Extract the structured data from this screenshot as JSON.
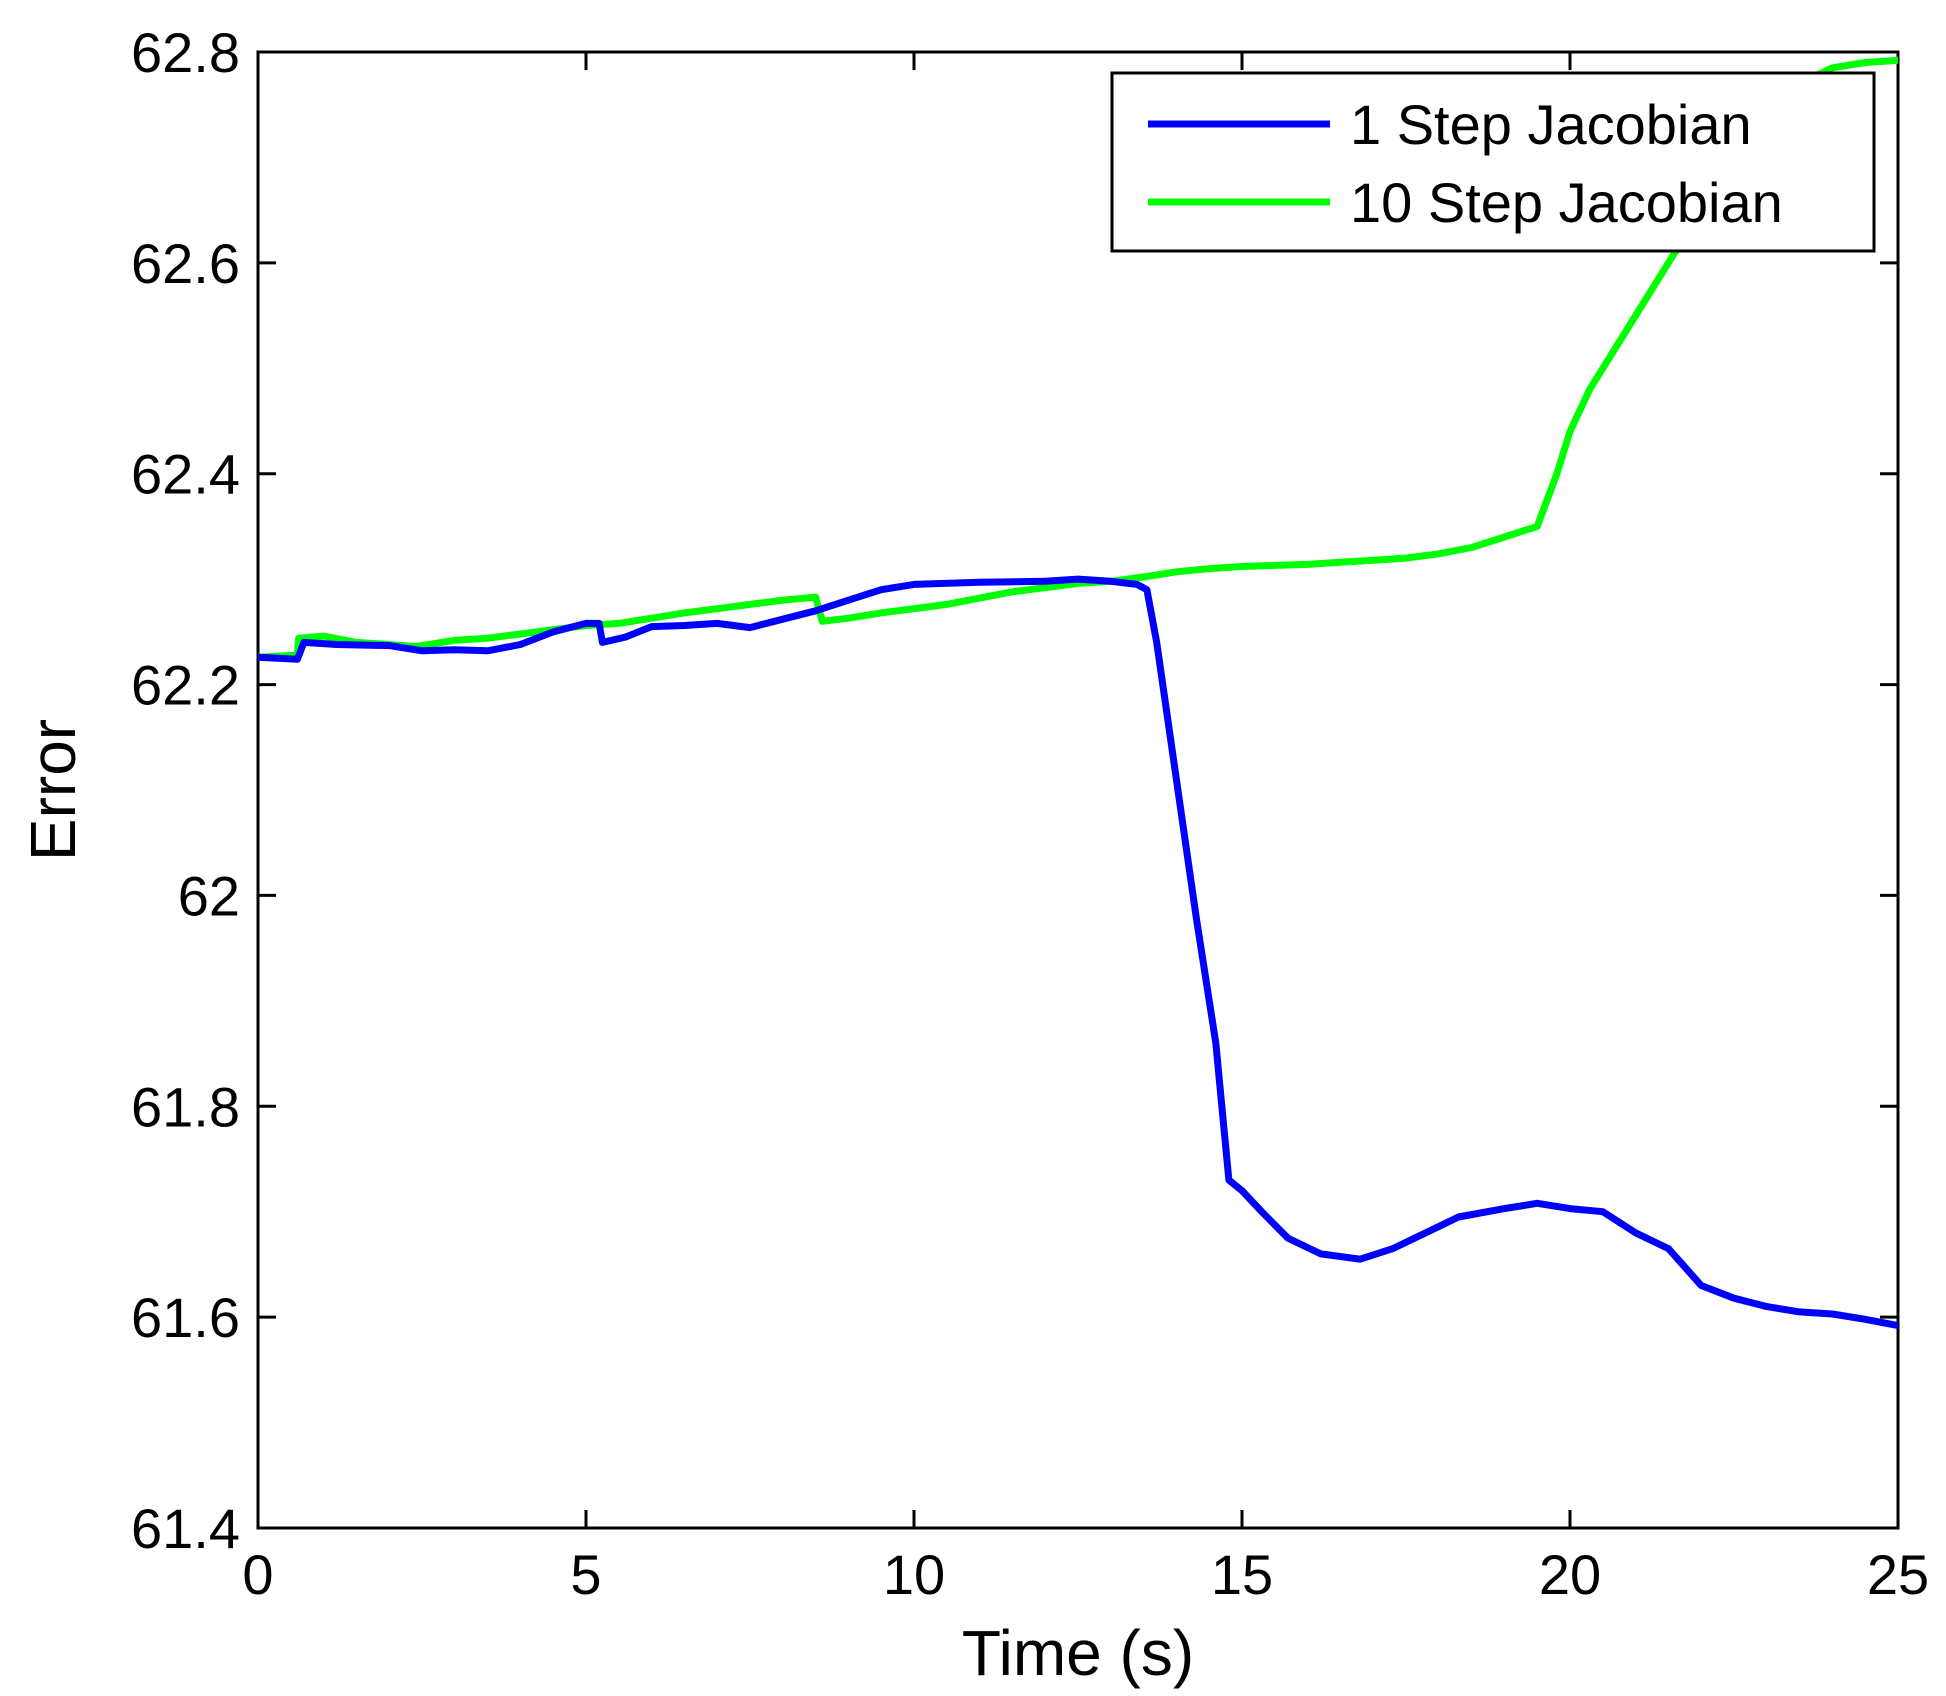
{
  "chart_data": {
    "type": "line",
    "title": "",
    "xlabel": "Time (s)",
    "ylabel": "Error",
    "xlim": [
      0,
      25
    ],
    "ylim": [
      61.4,
      62.8
    ],
    "xticks": [
      0,
      5,
      10,
      15,
      20,
      25
    ],
    "yticks": [
      61.4,
      61.6,
      61.8,
      62,
      62.2,
      62.4,
      62.6,
      62.8
    ],
    "xtick_labels": [
      "0",
      "5",
      "10",
      "15",
      "20",
      "25"
    ],
    "ytick_labels": [
      "61.4",
      "61.6",
      "61.8",
      "62",
      "62.2",
      "62.4",
      "62.6",
      "62.8"
    ],
    "grid": false,
    "legend_position": "top-right",
    "series": [
      {
        "name": "1 Step Jacobian",
        "color": "#0000ff",
        "x": [
          0,
          0.6,
          0.7,
          1.2,
          2.0,
          2.5,
          3.0,
          3.5,
          4.0,
          4.5,
          5.0,
          5.2,
          5.25,
          5.6,
          6.0,
          6.5,
          7.0,
          7.5,
          8.0,
          8.5,
          9.0,
          9.5,
          10.0,
          11.0,
          12.0,
          12.5,
          13.0,
          13.4,
          13.55,
          13.7,
          14.0,
          14.3,
          14.6,
          14.8,
          15.0,
          15.3,
          15.7,
          16.2,
          16.8,
          17.3,
          17.8,
          18.3,
          19.0,
          19.5,
          20.0,
          20.5,
          21.0,
          21.5,
          22.0,
          22.5,
          23.0,
          23.5,
          24.0,
          24.5,
          25.0
        ],
        "y": [
          62.226,
          62.224,
          62.24,
          62.238,
          62.237,
          62.232,
          62.233,
          62.232,
          62.238,
          62.25,
          62.258,
          62.258,
          62.24,
          62.245,
          62.255,
          62.256,
          62.258,
          62.254,
          62.262,
          62.27,
          62.28,
          62.29,
          62.295,
          62.297,
          62.298,
          62.3,
          62.298,
          62.295,
          62.29,
          62.24,
          62.11,
          61.98,
          61.86,
          61.73,
          61.72,
          61.7,
          61.675,
          61.66,
          61.655,
          61.665,
          61.68,
          61.695,
          61.703,
          61.708,
          61.703,
          61.7,
          61.68,
          61.665,
          61.63,
          61.618,
          61.61,
          61.605,
          61.603,
          61.598,
          61.592
        ]
      },
      {
        "name": "10 Step Jacobian",
        "color": "#00ff00",
        "x": [
          0,
          0.6,
          0.62,
          1.0,
          1.5,
          2.0,
          2.4,
          3.0,
          3.5,
          4.0,
          4.5,
          5.0,
          5.5,
          6.0,
          6.5,
          7.0,
          7.5,
          8.0,
          8.5,
          8.6,
          9.0,
          9.5,
          10.0,
          10.5,
          11.0,
          11.5,
          12.0,
          12.5,
          13.0,
          13.5,
          14.0,
          14.5,
          15.0,
          15.5,
          16.0,
          16.5,
          17.0,
          17.5,
          18.0,
          18.5,
          19.0,
          19.5,
          19.8,
          20.0,
          20.3,
          20.6,
          21.0,
          21.3,
          21.6,
          22.0,
          22.4,
          22.8,
          23.0,
          23.5,
          24.0,
          24.5,
          25.0
        ],
        "y": [
          62.226,
          62.228,
          62.244,
          62.246,
          62.24,
          62.238,
          62.236,
          62.242,
          62.244,
          62.248,
          62.252,
          62.256,
          62.258,
          62.263,
          62.268,
          62.272,
          62.276,
          62.28,
          62.283,
          62.26,
          62.263,
          62.268,
          62.272,
          62.276,
          62.282,
          62.288,
          62.292,
          62.296,
          62.298,
          62.302,
          62.307,
          62.31,
          62.312,
          62.313,
          62.314,
          62.316,
          62.318,
          62.32,
          62.324,
          62.33,
          62.34,
          62.35,
          62.4,
          62.44,
          62.48,
          62.51,
          62.55,
          62.58,
          62.61,
          62.64,
          62.68,
          62.72,
          62.74,
          62.77,
          62.785,
          62.79,
          62.792
        ]
      }
    ]
  }
}
